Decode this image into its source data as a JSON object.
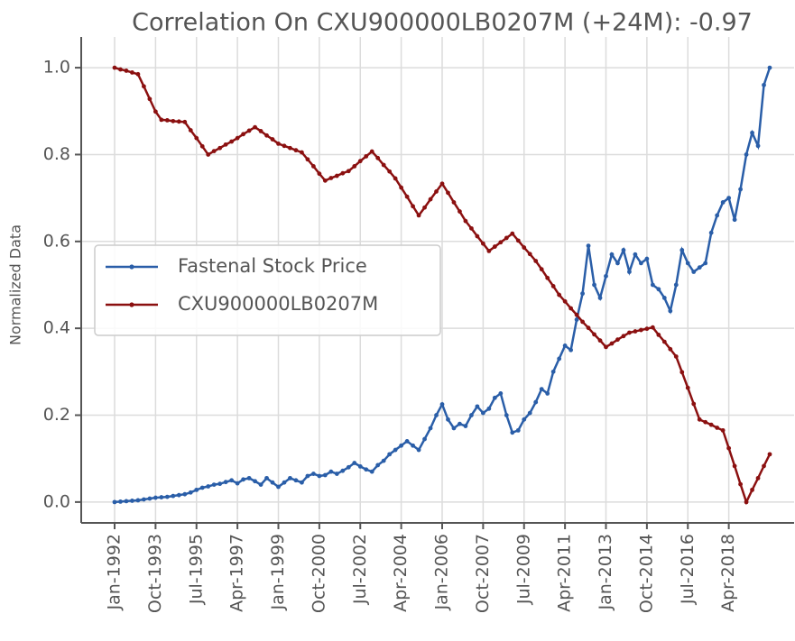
{
  "chart_data": {
    "type": "line",
    "title": "Correlation On CXU900000LB0207M (+24M): -0.97",
    "y_label": "Normalized Data",
    "x": [
      "Jan-1992",
      "Apr-1992",
      "Jul-1992",
      "Oct-1992",
      "Jan-1993",
      "Apr-1993",
      "Jul-1993",
      "Oct-1993",
      "Jan-1994",
      "Apr-1994",
      "Jul-1994",
      "Oct-1994",
      "Jan-1995",
      "Apr-1995",
      "Jul-1995",
      "Oct-1995",
      "Jan-1996",
      "Apr-1996",
      "Jul-1996",
      "Oct-1996",
      "Jan-1997",
      "Apr-1997",
      "Jul-1997",
      "Oct-1997",
      "Jan-1998",
      "Apr-1998",
      "Jul-1998",
      "Oct-1998",
      "Jan-1999",
      "Apr-1999",
      "Jul-1999",
      "Oct-1999",
      "Jan-2000",
      "Apr-2000",
      "Jul-2000",
      "Oct-2000",
      "Jan-2001",
      "Apr-2001",
      "Jul-2001",
      "Oct-2001",
      "Jan-2002",
      "Apr-2002",
      "Jul-2002",
      "Oct-2002",
      "Jan-2003",
      "Apr-2003",
      "Jul-2003",
      "Oct-2003",
      "Jan-2004",
      "Apr-2004",
      "Jul-2004",
      "Oct-2004",
      "Jan-2005",
      "Apr-2005",
      "Jul-2005",
      "Oct-2005",
      "Jan-2006",
      "Apr-2006",
      "Jul-2006",
      "Oct-2006",
      "Jan-2007",
      "Apr-2007",
      "Jul-2007",
      "Oct-2007",
      "Jan-2008",
      "Apr-2008",
      "Jul-2008",
      "Oct-2008",
      "Jan-2009",
      "Apr-2009",
      "Jul-2009",
      "Oct-2009",
      "Jan-2010",
      "Apr-2010",
      "Jul-2010",
      "Oct-2010",
      "Jan-2011",
      "Apr-2011",
      "Jul-2011",
      "Oct-2011",
      "Jan-2012",
      "Apr-2012",
      "Jul-2012",
      "Oct-2012",
      "Jan-2013",
      "Apr-2013",
      "Jul-2013",
      "Oct-2013",
      "Jan-2014",
      "Apr-2014",
      "Jul-2014",
      "Oct-2014",
      "Jan-2015",
      "Apr-2015",
      "Jul-2015",
      "Oct-2015",
      "Jan-2016",
      "Apr-2016",
      "Jul-2016",
      "Oct-2016",
      "Jan-2017",
      "Apr-2017",
      "Jul-2017",
      "Oct-2017",
      "Jan-2018",
      "Apr-2018",
      "Jul-2018",
      "Oct-2018",
      "Jan-2019",
      "Apr-2019",
      "Jul-2019",
      "Oct-2019",
      "Jan-2020"
    ],
    "xticks": [
      "Jan-1992",
      "Oct-1993",
      "Jul-1995",
      "Apr-1997",
      "Jan-1999",
      "Oct-2000",
      "Jul-2002",
      "Apr-2004",
      "Jan-2006",
      "Oct-2007",
      "Jul-2009",
      "Apr-2011",
      "Jan-2013",
      "Oct-2014",
      "Jul-2016",
      "Apr-2018"
    ],
    "ylim": [
      -0.048,
      1.05
    ],
    "yticks": [
      {
        "value": 0,
        "label": "0.0"
      },
      0.2,
      0.4,
      0.6,
      0.8,
      {
        "value": 1,
        "label": "1.0"
      }
    ],
    "grid": true,
    "legend": "center left",
    "series": [
      {
        "name": "Fastenal Stock Price",
        "color": "#2a5ea8",
        "values": [
          0.0,
          0.001,
          0.002,
          0.003,
          0.004,
          0.006,
          0.008,
          0.01,
          0.011,
          0.012,
          0.014,
          0.016,
          0.018,
          0.022,
          0.028,
          0.033,
          0.036,
          0.04,
          0.042,
          0.046,
          0.05,
          0.043,
          0.052,
          0.055,
          0.048,
          0.04,
          0.055,
          0.045,
          0.035,
          0.045,
          0.055,
          0.05,
          0.045,
          0.06,
          0.065,
          0.06,
          0.062,
          0.07,
          0.065,
          0.072,
          0.08,
          0.09,
          0.082,
          0.075,
          0.07,
          0.085,
          0.095,
          0.11,
          0.12,
          0.13,
          0.14,
          0.13,
          0.12,
          0.145,
          0.17,
          0.2,
          0.225,
          0.19,
          0.17,
          0.18,
          0.175,
          0.2,
          0.22,
          0.205,
          0.215,
          0.24,
          0.25,
          0.2,
          0.16,
          0.165,
          0.19,
          0.205,
          0.23,
          0.26,
          0.25,
          0.3,
          0.33,
          0.36,
          0.35,
          0.42,
          0.48,
          0.59,
          0.5,
          0.47,
          0.52,
          0.57,
          0.55,
          0.58,
          0.53,
          0.57,
          0.55,
          0.56,
          0.5,
          0.49,
          0.47,
          0.44,
          0.5,
          0.58,
          0.55,
          0.53,
          0.54,
          0.55,
          0.62,
          0.66,
          0.69,
          0.7,
          0.65,
          0.72,
          0.8,
          0.85,
          0.82,
          0.96,
          1.0
        ]
      },
      {
        "name": "CXU900000LB0207M",
        "color": "#8b1010",
        "values": [
          1.0,
          0.996,
          0.993,
          0.989,
          0.985,
          0.957,
          0.928,
          0.899,
          0.88,
          0.879,
          0.877,
          0.876,
          0.875,
          0.856,
          0.838,
          0.819,
          0.8,
          0.808,
          0.815,
          0.823,
          0.83,
          0.838,
          0.847,
          0.855,
          0.863,
          0.854,
          0.844,
          0.835,
          0.825,
          0.82,
          0.815,
          0.81,
          0.805,
          0.789,
          0.773,
          0.756,
          0.74,
          0.746,
          0.751,
          0.757,
          0.762,
          0.773,
          0.785,
          0.796,
          0.807,
          0.792,
          0.776,
          0.761,
          0.745,
          0.724,
          0.703,
          0.681,
          0.66,
          0.678,
          0.697,
          0.715,
          0.733,
          0.712,
          0.69,
          0.669,
          0.647,
          0.63,
          0.612,
          0.595,
          0.578,
          0.588,
          0.598,
          0.608,
          0.618,
          0.602,
          0.586,
          0.571,
          0.555,
          0.536,
          0.516,
          0.497,
          0.477,
          0.462,
          0.446,
          0.431,
          0.415,
          0.401,
          0.386,
          0.372,
          0.357,
          0.365,
          0.374,
          0.382,
          0.39,
          0.393,
          0.396,
          0.399,
          0.402,
          0.385,
          0.369,
          0.352,
          0.335,
          0.299,
          0.263,
          0.226,
          0.19,
          0.184,
          0.178,
          0.171,
          0.165,
          0.124,
          0.083,
          0.041,
          0.0,
          0.028,
          0.055,
          0.083,
          0.11
        ]
      }
    ]
  }
}
